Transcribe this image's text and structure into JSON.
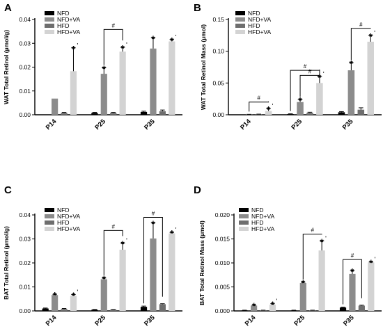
{
  "chart_data": [
    {
      "panel": "A",
      "type": "bar",
      "ylabel": "WAT Total Retinol (µmol/g)",
      "ylim": [
        0,
        0.04
      ],
      "ticks": [
        "0.00",
        "0.01",
        "0.02",
        "0.03",
        "0.04"
      ],
      "tick_values": [
        0,
        0.01,
        0.02,
        0.03,
        0.04
      ],
      "categories": [
        "P14",
        "P25",
        "P35"
      ],
      "legend_position": "top-left",
      "series": [
        {
          "name": "NFD",
          "color": "#000000",
          "values": [
            null,
            0.0008,
            0.0012
          ],
          "errors": [
            0,
            0.0002,
            0.0003
          ]
        },
        {
          "name": "NFD+VA",
          "color": "#8c8c8c",
          "values": [
            0.0068,
            0.0172,
            0.0278
          ],
          "errors": [
            0,
            0.0025,
            0.0045
          ]
        },
        {
          "name": "HFD",
          "color": "#6e6e6e",
          "values": [
            0.0008,
            0.0008,
            0.0015
          ],
          "errors": [
            0.0002,
            0.0002,
            0.0005
          ]
        },
        {
          "name": "HFD+VA",
          "color": "#d3d3d3",
          "values": [
            0.0183,
            0.0265,
            0.0308
          ],
          "errors": [
            0.0098,
            0.0018,
            0.0008
          ]
        }
      ],
      "annotations": [
        {
          "category": 1,
          "series": 1,
          "label": "*",
          "prime": ""
        },
        {
          "category": 2,
          "series": 1,
          "label": "*",
          "prime": ""
        },
        {
          "category": 0,
          "series": 3,
          "label": "*",
          "prime": "'"
        },
        {
          "category": 1,
          "series": 3,
          "label": "*",
          "prime": "'"
        },
        {
          "category": 2,
          "series": 3,
          "label": "*",
          "prime": "'"
        }
      ],
      "brackets": [
        {
          "category": 1,
          "from": 1,
          "to": 3,
          "level": 0.0358,
          "label": "#"
        }
      ]
    },
    {
      "panel": "B",
      "type": "bar",
      "ylabel": "WAT Total Retinol Mass (µmol)",
      "ylim": [
        0,
        0.15
      ],
      "ticks": [
        "0.00",
        "0.05",
        "0.10",
        "0.15"
      ],
      "tick_values": [
        0,
        0.05,
        0.1,
        0.15
      ],
      "categories": [
        "P14",
        "P25",
        "P35"
      ],
      "legend_position": "top-left",
      "series": [
        {
          "name": "NFD",
          "color": "#000000",
          "values": [
            null,
            0.001,
            0.004
          ],
          "errors": [
            0,
            0.0005,
            0.001
          ]
        },
        {
          "name": "NFD+VA",
          "color": "#8c8c8c",
          "values": [
            0.0005,
            0.02,
            0.07
          ],
          "errors": [
            0.0002,
            0.004,
            0.012
          ]
        },
        {
          "name": "HFD",
          "color": "#6e6e6e",
          "values": [
            0.0008,
            0.003,
            0.008
          ],
          "errors": [
            0.0002,
            0.001,
            0.003
          ]
        },
        {
          "name": "HFD+VA",
          "color": "#d3d3d3",
          "values": [
            0.006,
            0.05,
            0.115
          ],
          "errors": [
            0.004,
            0.01,
            0.01
          ]
        }
      ],
      "annotations": [
        {
          "category": 1,
          "series": 1,
          "label": "*",
          "prime": ""
        },
        {
          "category": 2,
          "series": 1,
          "label": "*",
          "prime": ""
        },
        {
          "category": 0,
          "series": 3,
          "label": "*",
          "prime": "'"
        },
        {
          "category": 1,
          "series": 3,
          "label": "*",
          "prime": "'"
        },
        {
          "category": 2,
          "series": 3,
          "label": "*",
          "prime": "'"
        }
      ],
      "brackets": [
        {
          "category": 0,
          "from": 1,
          "to": 3,
          "level": 0.02,
          "label": "#"
        },
        {
          "category": 1,
          "from": 0,
          "to": 3,
          "level": 0.07,
          "label": "#"
        },
        {
          "category": 1,
          "from": 1,
          "to": 3,
          "level": 0.062,
          "label": "#"
        },
        {
          "category": 2,
          "from": 1,
          "to": 3,
          "level": 0.136,
          "label": "#"
        }
      ]
    },
    {
      "panel": "C",
      "type": "bar",
      "ylabel": "BAT Total Retinol (µmol/g)",
      "ylim": [
        0,
        0.04
      ],
      "ticks": [
        "0.00",
        "0.01",
        "0.02",
        "0.03",
        "0.04"
      ],
      "tick_values": [
        0,
        0.01,
        0.02,
        0.03,
        0.04
      ],
      "categories": [
        "P14",
        "P25",
        "P35"
      ],
      "legend_position": "top-left",
      "series": [
        {
          "name": "NFD",
          "color": "#000000",
          "values": [
            0.001,
            0.0005,
            0.0017
          ],
          "errors": [
            0.0002,
            0.0001,
            0.0003
          ]
        },
        {
          "name": "NFD+VA",
          "color": "#8c8c8c",
          "values": [
            0.0066,
            0.0132,
            0.0302
          ],
          "errors": [
            0.0003,
            0.0005,
            0.0065
          ]
        },
        {
          "name": "HFD",
          "color": "#6e6e6e",
          "values": [
            0.0008,
            0.0005,
            0.0028
          ],
          "errors": [
            0.0002,
            0.0001,
            0.0002
          ]
        },
        {
          "name": "HFD+VA",
          "color": "#d3d3d3",
          "values": [
            0.0063,
            0.0255,
            0.0323
          ],
          "errors": [
            0.0005,
            0.0028,
            0.0004
          ]
        }
      ],
      "annotations": [
        {
          "category": 0,
          "series": 1,
          "label": "*",
          "prime": ""
        },
        {
          "category": 1,
          "series": 1,
          "label": "*",
          "prime": ""
        },
        {
          "category": 2,
          "series": 1,
          "label": "*",
          "prime": ""
        },
        {
          "category": 0,
          "series": 3,
          "label": "*",
          "prime": "'"
        },
        {
          "category": 1,
          "series": 3,
          "label": "*",
          "prime": "'"
        },
        {
          "category": 2,
          "series": 3,
          "label": "*",
          "prime": "'"
        }
      ],
      "brackets": [
        {
          "category": 1,
          "from": 1,
          "to": 3,
          "level": 0.0335,
          "label": "#"
        },
        {
          "category": 2,
          "from": 0,
          "to": 2,
          "level": 0.039,
          "label": "#"
        }
      ]
    },
    {
      "panel": "D",
      "type": "bar",
      "ylabel": "BAT Total Retinol Mass (µmol)",
      "ylim": [
        0,
        0.02
      ],
      "ticks": [
        "0.000",
        "0.005",
        "0.010",
        "0.015",
        "0.020"
      ],
      "tick_values": [
        0,
        0.005,
        0.01,
        0.015,
        0.02
      ],
      "categories": [
        "P14",
        "P25",
        "P35"
      ],
      "legend_position": "top-left",
      "series": [
        {
          "name": "NFD",
          "color": "#000000",
          "values": [
            0.0001,
            0.0001,
            0.0007
          ],
          "errors": [
            5e-05,
            5e-05,
            0.0001
          ]
        },
        {
          "name": "NFD+VA",
          "color": "#8c8c8c",
          "values": [
            0.0011,
            0.0058,
            0.0077
          ],
          "errors": [
            0.0001,
            0.0002,
            0.0007
          ]
        },
        {
          "name": "HFD",
          "color": "#6e6e6e",
          "values": [
            0.0001,
            0.0001,
            0.0011
          ],
          "errors": [
            5e-05,
            5e-05,
            0.0001
          ]
        },
        {
          "name": "HFD+VA",
          "color": "#d3d3d3",
          "values": [
            0.0013,
            0.0126,
            0.0101
          ],
          "errors": [
            0.0002,
            0.002,
            0.0001
          ]
        }
      ],
      "annotations": [
        {
          "category": 0,
          "series": 1,
          "label": "*",
          "prime": ""
        },
        {
          "category": 1,
          "series": 1,
          "label": "*",
          "prime": ""
        },
        {
          "category": 2,
          "series": 1,
          "label": "*",
          "prime": ""
        },
        {
          "category": 0,
          "series": 3,
          "label": "*",
          "prime": "'"
        },
        {
          "category": 1,
          "series": 3,
          "label": "*",
          "prime": "'"
        },
        {
          "category": 2,
          "series": 3,
          "label": "*",
          "prime": "'"
        }
      ],
      "brackets": [
        {
          "category": 1,
          "from": 1,
          "to": 3,
          "level": 0.016,
          "label": "#"
        },
        {
          "category": 2,
          "from": 0,
          "to": 2,
          "level": 0.0107,
          "label": "#"
        }
      ]
    }
  ]
}
